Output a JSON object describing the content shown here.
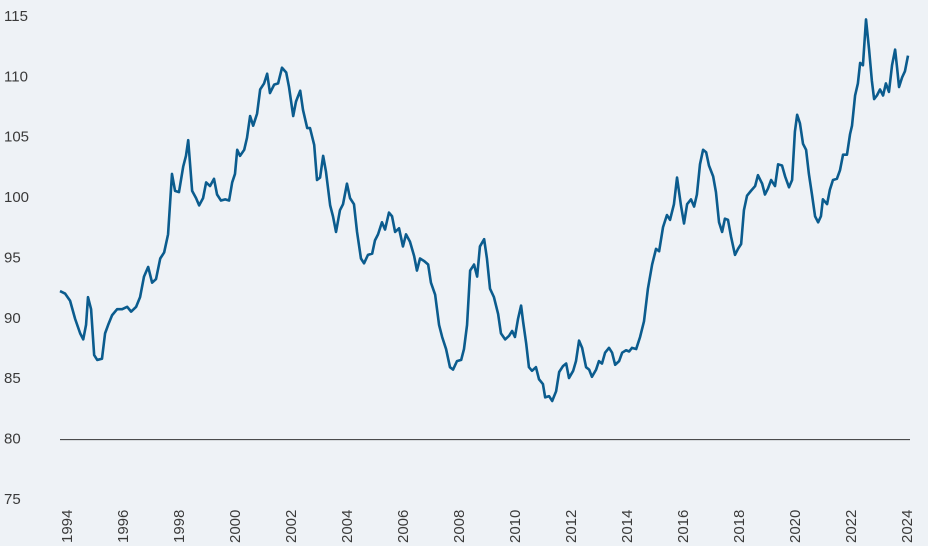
{
  "chart_data": {
    "type": "line",
    "x": [
      1993.71,
      1993.89,
      1994.07,
      1994.25,
      1994.43,
      1994.54,
      1994.64,
      1994.71,
      1994.82,
      1994.93,
      1995.04,
      1995.21,
      1995.32,
      1995.43,
      1995.57,
      1995.75,
      1995.93,
      1996.11,
      1996.25,
      1996.43,
      1996.57,
      1996.71,
      1996.86,
      1997.0,
      1997.14,
      1997.29,
      1997.43,
      1997.57,
      1997.71,
      1997.82,
      1997.96,
      1998.11,
      1998.21,
      1998.29,
      1998.43,
      1998.57,
      1998.68,
      1998.82,
      1998.93,
      1999.07,
      1999.21,
      1999.32,
      1999.46,
      1999.61,
      1999.75,
      1999.86,
      1999.96,
      2000.04,
      2000.14,
      2000.29,
      2000.39,
      2000.5,
      2000.61,
      2000.75,
      2000.86,
      2001.0,
      2001.11,
      2001.21,
      2001.36,
      2001.5,
      2001.64,
      2001.79,
      2001.89,
      2002.04,
      2002.14,
      2002.29,
      2002.39,
      2002.54,
      2002.64,
      2002.79,
      2002.89,
      2003.0,
      2003.11,
      2003.21,
      2003.36,
      2003.46,
      2003.57,
      2003.71,
      2003.82,
      2003.96,
      2004.07,
      2004.21,
      2004.32,
      2004.46,
      2004.57,
      2004.71,
      2004.86,
      2004.96,
      2005.07,
      2005.21,
      2005.32,
      2005.46,
      2005.57,
      2005.68,
      2005.82,
      2005.96,
      2006.07,
      2006.21,
      2006.36,
      2006.46,
      2006.57,
      2006.71,
      2006.86,
      2006.96,
      2007.11,
      2007.25,
      2007.36,
      2007.5,
      2007.64,
      2007.75,
      2007.89,
      2008.04,
      2008.14,
      2008.25,
      2008.36,
      2008.5,
      2008.61,
      2008.71,
      2008.86,
      2008.96,
      2009.07,
      2009.21,
      2009.36,
      2009.46,
      2009.61,
      2009.75,
      2009.86,
      2009.96,
      2010.07,
      2010.18,
      2010.25,
      2010.36,
      2010.46,
      2010.57,
      2010.71,
      2010.82,
      2010.96,
      2011.04,
      2011.18,
      2011.29,
      2011.43,
      2011.54,
      2011.68,
      2011.79,
      2011.89,
      2012.04,
      2012.14,
      2012.25,
      2012.36,
      2012.5,
      2012.61,
      2012.71,
      2012.86,
      2012.96,
      2013.07,
      2013.18,
      2013.32,
      2013.43,
      2013.54,
      2013.68,
      2013.79,
      2013.93,
      2014.04,
      2014.14,
      2014.29,
      2014.43,
      2014.57,
      2014.71,
      2014.86,
      2015.0,
      2015.11,
      2015.25,
      2015.39,
      2015.5,
      2015.64,
      2015.75,
      2015.89,
      2016.0,
      2016.11,
      2016.25,
      2016.36,
      2016.46,
      2016.57,
      2016.68,
      2016.79,
      2016.89,
      2017.04,
      2017.14,
      2017.25,
      2017.36,
      2017.46,
      2017.57,
      2017.68,
      2017.82,
      2017.93,
      2018.04,
      2018.14,
      2018.25,
      2018.39,
      2018.54,
      2018.64,
      2018.79,
      2018.89,
      2019.0,
      2019.11,
      2019.25,
      2019.36,
      2019.5,
      2019.61,
      2019.75,
      2019.86,
      2019.96,
      2020.04,
      2020.14,
      2020.25,
      2020.36,
      2020.46,
      2020.57,
      2020.68,
      2020.79,
      2020.89,
      2020.96,
      2021.11,
      2021.21,
      2021.32,
      2021.46,
      2021.57,
      2021.68,
      2021.82,
      2021.93,
      2022.0,
      2022.11,
      2022.21,
      2022.29,
      2022.39,
      2022.5,
      2022.61,
      2022.71,
      2022.79,
      2022.89,
      2023.0,
      2023.11,
      2023.21,
      2023.32,
      2023.43,
      2023.54,
      2023.61,
      2023.68,
      2023.79,
      2023.89,
      2024.0
    ],
    "series": [
      {
        "color": "#0b5c8e",
        "values": [
          92.3,
          92.1,
          91.5,
          90.0,
          88.8,
          88.3,
          89.5,
          91.8,
          90.8,
          87.0,
          86.6,
          86.7,
          88.8,
          89.5,
          90.3,
          90.8,
          90.8,
          91.0,
          90.6,
          91.0,
          91.8,
          93.5,
          94.3,
          93.0,
          93.3,
          95.0,
          95.5,
          97.0,
          102.0,
          100.6,
          100.5,
          102.6,
          103.5,
          104.8,
          100.6,
          100.0,
          99.4,
          100.0,
          101.3,
          101.0,
          101.6,
          100.3,
          99.8,
          99.9,
          99.8,
          101.3,
          102.0,
          104.0,
          103.5,
          104.0,
          105.0,
          106.8,
          106.0,
          107.0,
          109.0,
          109.5,
          110.3,
          108.7,
          109.4,
          109.5,
          110.8,
          110.4,
          109.2,
          106.8,
          108.0,
          108.9,
          107.3,
          105.8,
          105.8,
          104.4,
          101.5,
          101.7,
          103.5,
          102.2,
          99.4,
          98.5,
          97.2,
          99.0,
          99.5,
          101.2,
          100.0,
          99.5,
          97.2,
          95.0,
          94.6,
          95.3,
          95.4,
          96.5,
          97.0,
          98.0,
          97.4,
          98.8,
          98.5,
          97.2,
          97.5,
          96.0,
          97.0,
          96.4,
          95.2,
          94.0,
          95.0,
          94.8,
          94.5,
          93.0,
          92.0,
          89.5,
          88.5,
          87.5,
          86.0,
          85.8,
          86.5,
          86.6,
          87.5,
          89.5,
          94.0,
          94.5,
          93.5,
          96.0,
          96.6,
          95.0,
          92.5,
          91.8,
          90.4,
          88.8,
          88.3,
          88.6,
          89.0,
          88.5,
          90.0,
          91.1,
          89.8,
          88.0,
          86.0,
          85.7,
          86.0,
          85.0,
          84.6,
          83.5,
          83.6,
          83.2,
          84.0,
          85.6,
          86.1,
          86.3,
          85.1,
          85.7,
          86.5,
          88.2,
          87.6,
          86.0,
          85.8,
          85.2,
          85.8,
          86.5,
          86.3,
          87.2,
          87.6,
          87.2,
          86.2,
          86.5,
          87.2,
          87.4,
          87.3,
          87.6,
          87.5,
          88.5,
          89.8,
          92.5,
          94.5,
          95.8,
          95.6,
          97.6,
          98.6,
          98.2,
          99.5,
          101.7,
          99.4,
          97.9,
          99.5,
          99.9,
          99.3,
          100.3,
          102.8,
          104.0,
          103.8,
          102.7,
          101.8,
          100.5,
          98.0,
          97.2,
          98.3,
          98.2,
          96.8,
          95.3,
          95.8,
          96.2,
          99.0,
          100.2,
          100.6,
          101.0,
          101.9,
          101.2,
          100.3,
          100.8,
          101.5,
          101.0,
          102.8,
          102.7,
          101.8,
          100.9,
          101.5,
          105.5,
          106.9,
          106.2,
          104.5,
          104.0,
          102.0,
          100.3,
          98.5,
          98.0,
          98.5,
          99.9,
          99.5,
          100.7,
          101.5,
          101.6,
          102.3,
          103.6,
          103.6,
          105.3,
          106.0,
          108.5,
          109.5,
          111.2,
          111.0,
          114.8,
          112.3,
          109.7,
          108.2,
          108.5,
          109.0,
          108.5,
          109.5,
          108.8,
          111.0,
          112.3,
          110.8,
          109.2,
          110.0,
          110.5,
          111.8
        ]
      }
    ],
    "xlim": [
      1993.71,
      2024.0
    ],
    "xticks": [
      1994,
      1996,
      1998,
      2000,
      2002,
      2004,
      2006,
      2008,
      2010,
      2012,
      2014,
      2016,
      2018,
      2020,
      2022,
      2024
    ],
    "ylim": [
      75,
      115
    ],
    "yticks": [
      75,
      80,
      85,
      90,
      95,
      100,
      105,
      110,
      115
    ],
    "xaxis_at": 80
  }
}
